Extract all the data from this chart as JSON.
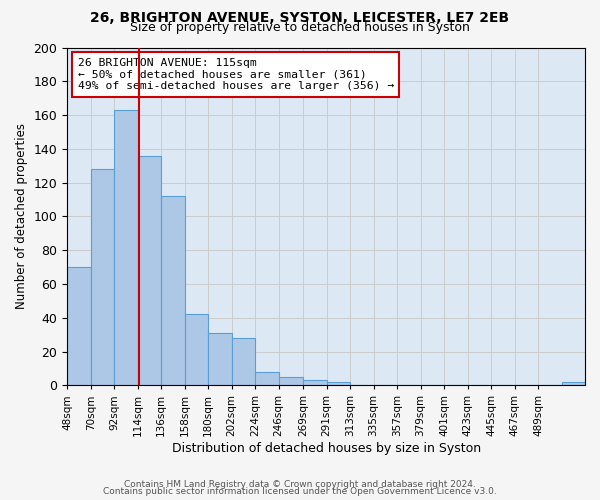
{
  "title1": "26, BRIGHTON AVENUE, SYSTON, LEICESTER, LE7 2EB",
  "title2": "Size of property relative to detached houses in Syston",
  "xlabel": "Distribution of detached houses by size in Syston",
  "ylabel": "Number of detached properties",
  "bar_values": [
    70,
    128,
    163,
    136,
    112,
    42,
    31,
    28,
    8,
    5,
    3,
    2,
    0,
    0,
    0,
    0,
    0,
    0,
    0,
    0,
    0,
    2
  ],
  "bin_edges": [
    48,
    70,
    92,
    114,
    136,
    158,
    180,
    202,
    224,
    246,
    269,
    291,
    313,
    335,
    357,
    379,
    401,
    423,
    445,
    467,
    489,
    511,
    533
  ],
  "x_tick_labels": [
    "48sqm",
    "70sqm",
    "92sqm",
    "114sqm",
    "136sqm",
    "158sqm",
    "180sqm",
    "202sqm",
    "224sqm",
    "246sqm",
    "269sqm",
    "291sqm",
    "313sqm",
    "335sqm",
    "357sqm",
    "379sqm",
    "401sqm",
    "423sqm",
    "445sqm",
    "467sqm",
    "489sqm"
  ],
  "bar_color": "#adc8e6",
  "bar_edge_color": "#5a9fd4",
  "vline_x": 115,
  "vline_color": "#cc0000",
  "ylim": [
    0,
    200
  ],
  "yticks": [
    0,
    20,
    40,
    60,
    80,
    100,
    120,
    140,
    160,
    180,
    200
  ],
  "grid_color": "#cccccc",
  "bg_color": "#dce9f5",
  "annotation_title": "26 BRIGHTON AVENUE: 115sqm",
  "annotation_line1": "← 50% of detached houses are smaller (361)",
  "annotation_line2": "49% of semi-detached houses are larger (356) →",
  "annotation_box_color": "#ffffff",
  "annotation_border_color": "#cc0000",
  "footer1": "Contains HM Land Registry data © Crown copyright and database right 2024.",
  "footer2": "Contains public sector information licensed under the Open Government Licence v3.0."
}
